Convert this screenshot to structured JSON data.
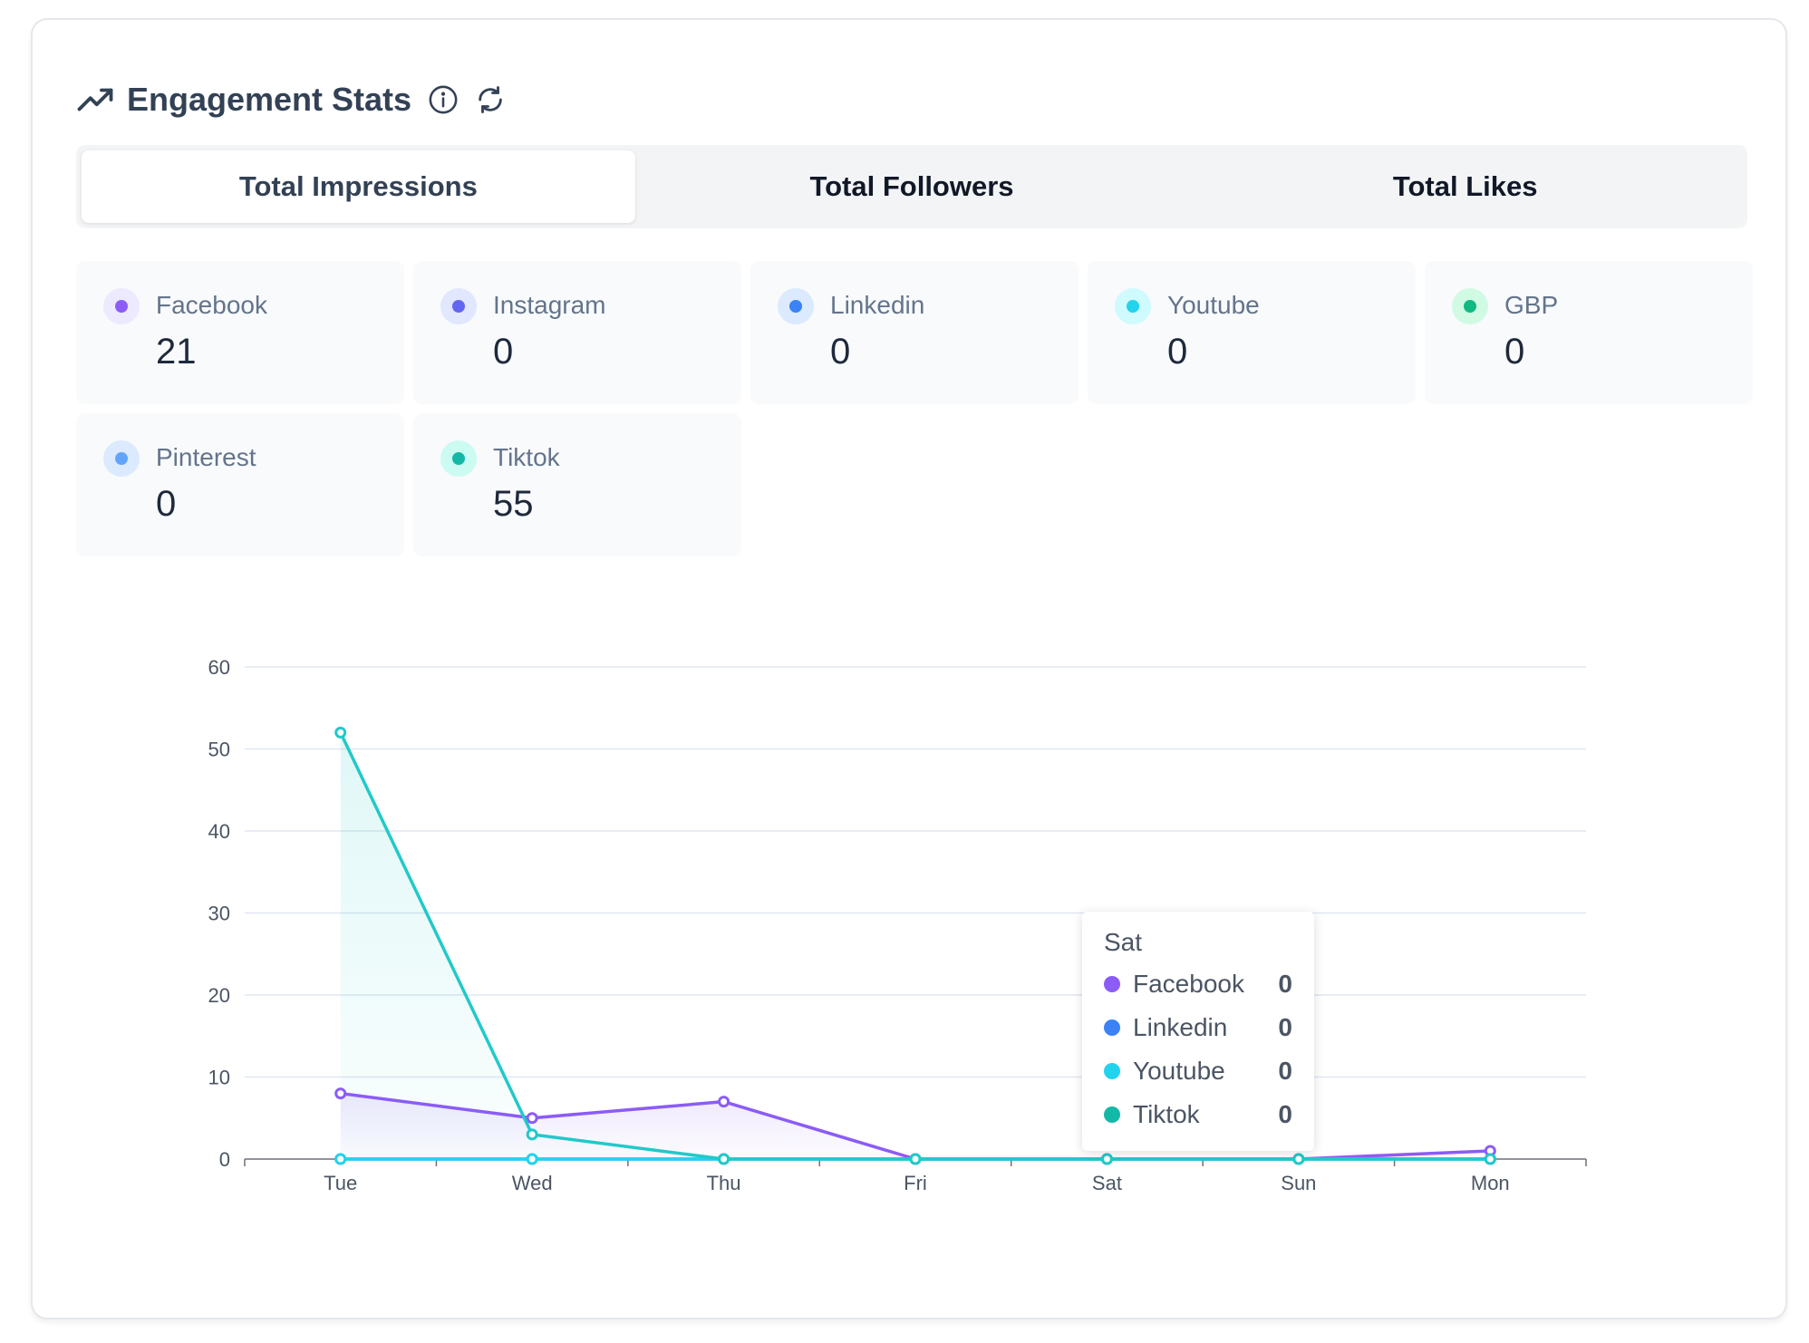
{
  "header": {
    "title": "Engagement Stats",
    "icons": [
      "trending-up-icon",
      "info-icon",
      "refresh-icon"
    ]
  },
  "tabs": [
    {
      "label": "Total Impressions",
      "active": true
    },
    {
      "label": "Total Followers",
      "active": false
    },
    {
      "label": "Total Likes",
      "active": false
    }
  ],
  "stats": [
    {
      "name": "Facebook",
      "value": "21",
      "color": "#8b5cf6",
      "bg": "#ede9fe"
    },
    {
      "name": "Instagram",
      "value": "0",
      "color": "#6366f1",
      "bg": "#e0e7ff"
    },
    {
      "name": "Linkedin",
      "value": "0",
      "color": "#3b82f6",
      "bg": "#dbeafe"
    },
    {
      "name": "Youtube",
      "value": "0",
      "color": "#22d3ee",
      "bg": "#cffafe"
    },
    {
      "name": "GBP",
      "value": "0",
      "color": "#10b981",
      "bg": "#d1fae5"
    },
    {
      "name": "Pinterest",
      "value": "0",
      "color": "#60a5fa",
      "bg": "#dbeafe"
    },
    {
      "name": "Tiktok",
      "value": "55",
      "color": "#14b8a6",
      "bg": "#ccfbf1"
    }
  ],
  "chart_data": {
    "type": "line",
    "x": [
      "Tue",
      "Wed",
      "Thu",
      "Fri",
      "Sat",
      "Sun",
      "Mon"
    ],
    "ylim": [
      0,
      60
    ],
    "yticks": [
      0,
      10,
      20,
      30,
      40,
      50,
      60
    ],
    "grid": true,
    "series": [
      {
        "name": "Facebook",
        "color": "#8b5cf6",
        "values": [
          8,
          5,
          7,
          0,
          0,
          0,
          1
        ],
        "area": true
      },
      {
        "name": "Linkedin",
        "color": "#3b82f6",
        "values": [
          0,
          0,
          0,
          0,
          0,
          0,
          0
        ],
        "area": false
      },
      {
        "name": "Youtube",
        "color": "#22d3ee",
        "values": [
          0,
          0,
          0,
          0,
          0,
          0,
          0
        ],
        "area": false
      },
      {
        "name": "Tiktok",
        "color": "#22c9c9",
        "values": [
          52,
          3,
          0,
          0,
          0,
          0,
          0
        ],
        "area": true
      }
    ]
  },
  "tooltip": {
    "title": "Sat",
    "rows": [
      {
        "name": "Facebook",
        "value": "0",
        "color": "#8b5cf6"
      },
      {
        "name": "Linkedin",
        "value": "0",
        "color": "#3b82f6"
      },
      {
        "name": "Youtube",
        "value": "0",
        "color": "#22d3ee"
      },
      {
        "name": "Tiktok",
        "value": "0",
        "color": "#14b8a6"
      }
    ]
  }
}
